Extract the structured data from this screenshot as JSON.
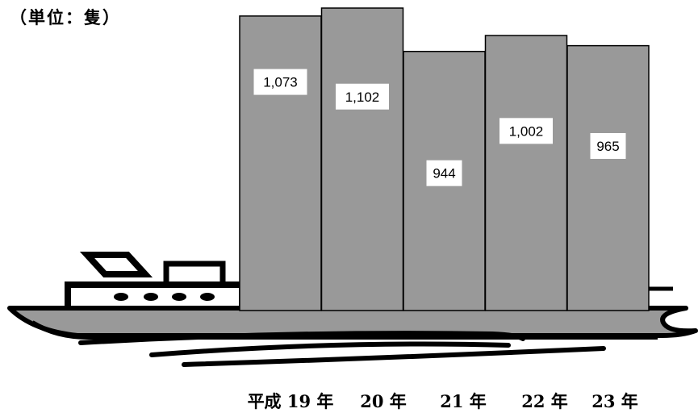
{
  "unit_label": "（単位：隻）",
  "chart_data": {
    "type": "bar",
    "categories": [
      "平成 19 年",
      "20 年",
      "21 年",
      "22 年",
      "23 年"
    ],
    "values": [
      1073,
      1102,
      944,
      1002,
      965
    ],
    "value_labels": [
      "1,073",
      "1,102",
      "944",
      "1,002",
      "965"
    ],
    "title": "",
    "xlabel": "",
    "ylabel": "",
    "grid": false,
    "legend": "none"
  },
  "colors": {
    "bar_fill": "#999999",
    "hull_fill": "#999999",
    "outline": "#000000",
    "label_box": "#ffffff"
  }
}
